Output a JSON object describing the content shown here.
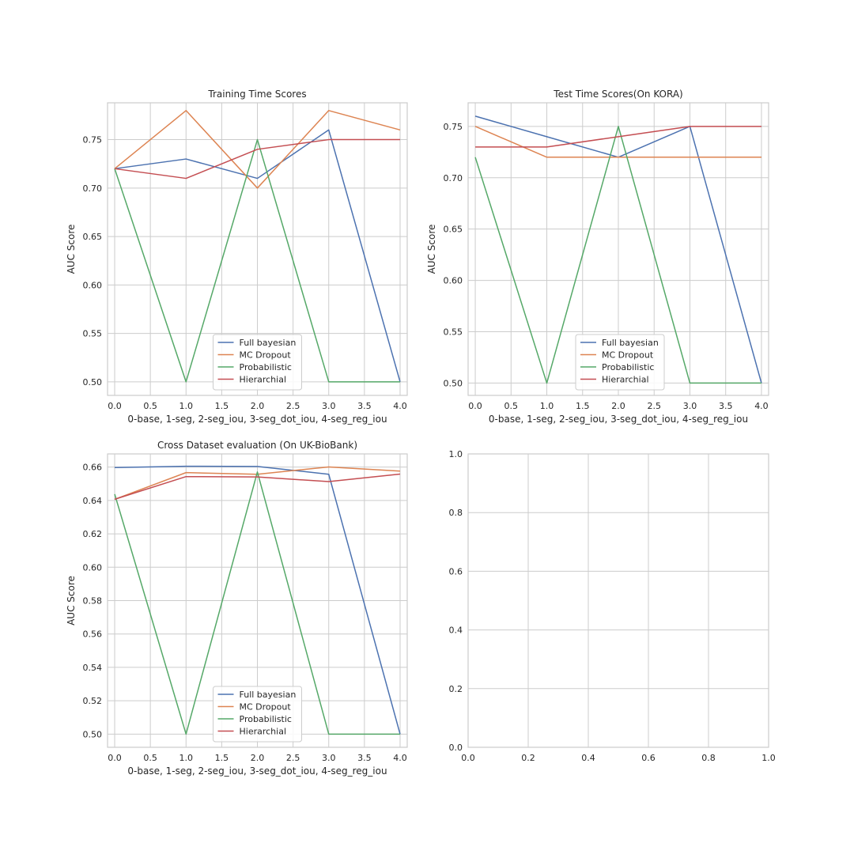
{
  "chart_data": [
    {
      "type": "line",
      "title": "Training Time Scores",
      "xlabel": "0-base, 1-seg, 2-seg_iou, 3-seg_dot_iou, 4-seg_reg_iou",
      "ylabel": "AUC Score",
      "x": [
        0,
        1,
        2,
        3,
        4
      ],
      "xlim": [
        -0.1,
        4.1
      ],
      "ylim": [
        0.486,
        0.788
      ],
      "xticks": [
        0.0,
        0.5,
        1.0,
        1.5,
        2.0,
        2.5,
        3.0,
        3.5,
        4.0
      ],
      "xtick_labels": [
        "0.0",
        "0.5",
        "1.0",
        "1.5",
        "2.0",
        "2.5",
        "3.0",
        "3.5",
        "4.0"
      ],
      "yticks": [
        0.5,
        0.55,
        0.6,
        0.65,
        0.7,
        0.75
      ],
      "ytick_labels": [
        "0.50",
        "0.55",
        "0.60",
        "0.65",
        "0.70",
        "0.75"
      ],
      "grid": true,
      "legend": "lower center",
      "series": [
        {
          "name": "Full bayesian",
          "color": "#4c72b0",
          "values": [
            0.72,
            0.73,
            0.71,
            0.76,
            0.5
          ]
        },
        {
          "name": "MC Dropout",
          "color": "#dd8452",
          "values": [
            0.72,
            0.78,
            0.7,
            0.78,
            0.76
          ]
        },
        {
          "name": "Probabilistic",
          "color": "#55a868",
          "values": [
            0.72,
            0.5,
            0.75,
            0.5,
            0.5
          ]
        },
        {
          "name": "Hierarchial",
          "color": "#c44e52",
          "values": [
            0.72,
            0.71,
            0.74,
            0.75,
            0.75
          ]
        }
      ]
    },
    {
      "type": "line",
      "title": "Test Time Scores(On KORA)",
      "xlabel": "0-base, 1-seg, 2-seg_iou, 3-seg_dot_iou, 4-seg_reg_iou",
      "ylabel": "AUC Score",
      "x": [
        0,
        1,
        2,
        3,
        4
      ],
      "xlim": [
        -0.1,
        4.1
      ],
      "ylim": [
        0.488,
        0.773
      ],
      "xticks": [
        0.0,
        0.5,
        1.0,
        1.5,
        2.0,
        2.5,
        3.0,
        3.5,
        4.0
      ],
      "xtick_labels": [
        "0.0",
        "0.5",
        "1.0",
        "1.5",
        "2.0",
        "2.5",
        "3.0",
        "3.5",
        "4.0"
      ],
      "yticks": [
        0.5,
        0.55,
        0.6,
        0.65,
        0.7,
        0.75
      ],
      "ytick_labels": [
        "0.50",
        "0.55",
        "0.60",
        "0.65",
        "0.70",
        "0.75"
      ],
      "grid": true,
      "legend": "lower center",
      "series": [
        {
          "name": "Full bayesian",
          "color": "#4c72b0",
          "values": [
            0.76,
            0.74,
            0.72,
            0.75,
            0.5
          ]
        },
        {
          "name": "MC Dropout",
          "color": "#dd8452",
          "values": [
            0.75,
            0.72,
            0.72,
            0.72,
            0.72
          ]
        },
        {
          "name": "Probabilistic",
          "color": "#55a868",
          "values": [
            0.72,
            0.5,
            0.75,
            0.5,
            0.5
          ]
        },
        {
          "name": "Hierarchial",
          "color": "#c44e52",
          "values": [
            0.73,
            0.73,
            0.74,
            0.75,
            0.75
          ]
        }
      ]
    },
    {
      "type": "line",
      "title": "Cross Dataset evaluation (On UK-BioBank)",
      "xlabel": "0-base, 1-seg, 2-seg_iou, 3-seg_dot_iou, 4-seg_reg_iou",
      "ylabel": "AUC Score",
      "x": [
        0,
        1,
        2,
        3,
        4
      ],
      "xlim": [
        -0.1,
        4.1
      ],
      "ylim": [
        0.4921,
        0.6679
      ],
      "xticks": [
        0.0,
        0.5,
        1.0,
        1.5,
        2.0,
        2.5,
        3.0,
        3.5,
        4.0
      ],
      "xtick_labels": [
        "0.0",
        "0.5",
        "1.0",
        "1.5",
        "2.0",
        "2.5",
        "3.0",
        "3.5",
        "4.0"
      ],
      "yticks": [
        0.5,
        0.52,
        0.54,
        0.56,
        0.58,
        0.6,
        0.62,
        0.64,
        0.66
      ],
      "ytick_labels": [
        "0.50",
        "0.52",
        "0.54",
        "0.56",
        "0.58",
        "0.60",
        "0.62",
        "0.64",
        "0.66"
      ],
      "grid": true,
      "legend": "lower center",
      "series": [
        {
          "name": "Full bayesian",
          "color": "#4c72b0",
          "values": [
            0.6597,
            0.6605,
            0.6604,
            0.6557,
            0.5
          ]
        },
        {
          "name": "MC Dropout",
          "color": "#dd8452",
          "values": [
            0.6407,
            0.6567,
            0.6557,
            0.6601,
            0.6576
          ]
        },
        {
          "name": "Probabilistic",
          "color": "#55a868",
          "values": [
            0.6438,
            0.5,
            0.6571,
            0.5,
            0.5
          ]
        },
        {
          "name": "Hierarchial",
          "color": "#c44e52",
          "values": [
            0.6407,
            0.6543,
            0.6541,
            0.6513,
            0.6558
          ]
        }
      ]
    },
    {
      "type": "line",
      "title": "",
      "xlabel": "",
      "ylabel": "",
      "x": [],
      "xlim": [
        0,
        1
      ],
      "ylim": [
        0,
        1
      ],
      "xticks": [
        0.0,
        0.2,
        0.4,
        0.6,
        0.8,
        1.0
      ],
      "xtick_labels": [
        "0.0",
        "0.2",
        "0.4",
        "0.6",
        "0.8",
        "1.0"
      ],
      "yticks": [
        0.0,
        0.2,
        0.4,
        0.6,
        0.8,
        1.0
      ],
      "ytick_labels": [
        "0.0",
        "0.2",
        "0.4",
        "0.6",
        "0.8",
        "1.0"
      ],
      "grid": true,
      "legend": "",
      "series": []
    }
  ]
}
